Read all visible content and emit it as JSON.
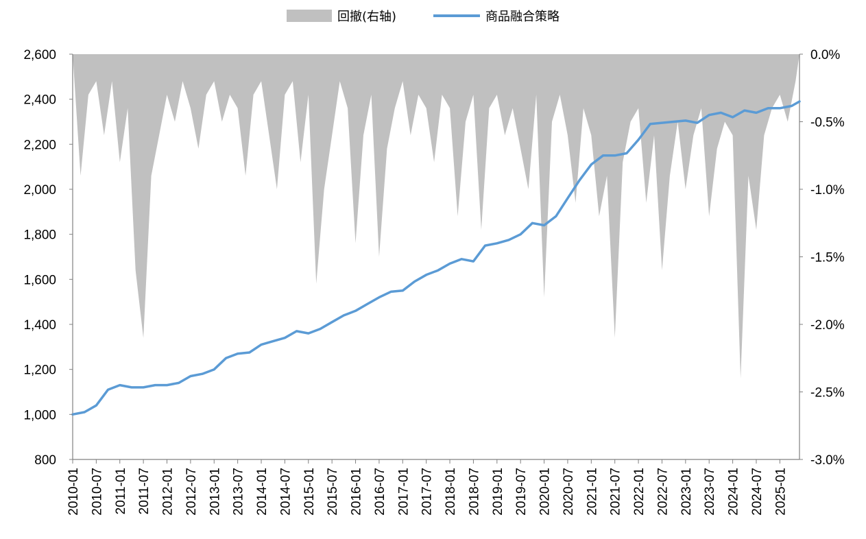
{
  "chart_data": {
    "type": "line",
    "title": "",
    "legend": [
      {
        "name": "回撤(右轴)",
        "kind": "area",
        "color": "#c0c0c0"
      },
      {
        "name": "商品融合策略",
        "kind": "line",
        "color": "#5b9bd5"
      }
    ],
    "legend_position": "top-center",
    "grid": false,
    "x_axis": {
      "type": "date",
      "range": [
        "2010-01",
        "2025-06"
      ],
      "ticks": [
        "2010-01",
        "2010-07",
        "2011-01",
        "2011-07",
        "2012-01",
        "2012-07",
        "2013-01",
        "2013-07",
        "2014-01",
        "2014-07",
        "2015-01",
        "2015-07",
        "2016-01",
        "2016-07",
        "2017-01",
        "2017-07",
        "2018-01",
        "2018-07",
        "2019-01",
        "2019-07",
        "2020-01",
        "2020-07",
        "2021-01",
        "2021-07",
        "2022-01",
        "2022-07",
        "2023-01",
        "2023-07",
        "2024-01",
        "2024-07",
        "2025-01"
      ]
    },
    "y_left": {
      "min": 800,
      "max": 2600,
      "ticks": [
        800,
        1000,
        1200,
        1400,
        1600,
        1800,
        2000,
        2200,
        2400,
        2600
      ],
      "tick_labels": [
        "800",
        "1,000",
        "1,200",
        "1,400",
        "1,600",
        "1,800",
        "2,000",
        "2,200",
        "2,400",
        "2,600"
      ]
    },
    "y_right": {
      "min": -3.0,
      "max": 0.0,
      "ticks": [
        0.0,
        -0.5,
        -1.0,
        -1.5,
        -2.0,
        -2.5,
        -3.0
      ],
      "tick_labels": [
        "0.0%",
        "-0.5%",
        "-1.0%",
        "-1.5%",
        "-2.0%",
        "-2.5%",
        "-3.0%"
      ]
    },
    "series": [
      {
        "name": "商品融合策略",
        "axis": "left",
        "x": [
          "2010-01",
          "2010-04",
          "2010-07",
          "2010-10",
          "2011-01",
          "2011-04",
          "2011-07",
          "2011-10",
          "2012-01",
          "2012-04",
          "2012-07",
          "2012-10",
          "2013-01",
          "2013-04",
          "2013-07",
          "2013-10",
          "2014-01",
          "2014-04",
          "2014-07",
          "2014-10",
          "2015-01",
          "2015-04",
          "2015-07",
          "2015-10",
          "2016-01",
          "2016-04",
          "2016-07",
          "2016-10",
          "2017-01",
          "2017-04",
          "2017-07",
          "2017-10",
          "2018-01",
          "2018-04",
          "2018-07",
          "2018-10",
          "2019-01",
          "2019-04",
          "2019-07",
          "2019-10",
          "2020-01",
          "2020-04",
          "2020-07",
          "2020-10",
          "2021-01",
          "2021-04",
          "2021-07",
          "2021-10",
          "2022-01",
          "2022-04",
          "2022-07",
          "2022-10",
          "2023-01",
          "2023-04",
          "2023-07",
          "2023-10",
          "2024-01",
          "2024-04",
          "2024-07",
          "2024-10",
          "2025-01",
          "2025-04",
          "2025-06"
        ],
        "values": [
          1000,
          1010,
          1040,
          1110,
          1130,
          1120,
          1120,
          1130,
          1130,
          1140,
          1170,
          1180,
          1200,
          1250,
          1270,
          1275,
          1310,
          1325,
          1340,
          1370,
          1360,
          1380,
          1410,
          1440,
          1460,
          1490,
          1520,
          1545,
          1550,
          1590,
          1620,
          1640,
          1670,
          1690,
          1680,
          1750,
          1760,
          1775,
          1800,
          1850,
          1840,
          1880,
          1960,
          2040,
          2110,
          2150,
          2150,
          2160,
          2220,
          2290,
          2295,
          2300,
          2305,
          2295,
          2330,
          2340,
          2320,
          2350,
          2340,
          2360,
          2360,
          2370,
          2390
        ]
      },
      {
        "name": "回撤(右轴)",
        "axis": "right",
        "x": [
          "2010-01",
          "2010-03",
          "2010-05",
          "2010-07",
          "2010-09",
          "2010-11",
          "2011-01",
          "2011-03",
          "2011-05",
          "2011-07",
          "2011-09",
          "2011-11",
          "2012-01",
          "2012-03",
          "2012-05",
          "2012-07",
          "2012-09",
          "2012-11",
          "2013-01",
          "2013-03",
          "2013-05",
          "2013-07",
          "2013-09",
          "2013-11",
          "2014-01",
          "2014-03",
          "2014-05",
          "2014-07",
          "2014-09",
          "2014-11",
          "2015-01",
          "2015-03",
          "2015-05",
          "2015-07",
          "2015-09",
          "2015-11",
          "2016-01",
          "2016-03",
          "2016-05",
          "2016-07",
          "2016-09",
          "2016-11",
          "2017-01",
          "2017-03",
          "2017-05",
          "2017-07",
          "2017-09",
          "2017-11",
          "2018-01",
          "2018-03",
          "2018-05",
          "2018-07",
          "2018-09",
          "2018-11",
          "2019-01",
          "2019-03",
          "2019-05",
          "2019-07",
          "2019-09",
          "2019-11",
          "2020-01",
          "2020-03",
          "2020-05",
          "2020-07",
          "2020-09",
          "2020-11",
          "2021-01",
          "2021-03",
          "2021-05",
          "2021-07",
          "2021-09",
          "2021-11",
          "2022-01",
          "2022-03",
          "2022-05",
          "2022-07",
          "2022-09",
          "2022-11",
          "2023-01",
          "2023-03",
          "2023-05",
          "2023-07",
          "2023-09",
          "2023-11",
          "2024-01",
          "2024-03",
          "2024-05",
          "2024-07",
          "2024-09",
          "2024-11",
          "2025-01",
          "2025-03",
          "2025-05",
          "2025-06"
        ],
        "values": [
          0,
          -0.9,
          -0.3,
          -0.2,
          -0.6,
          -0.2,
          -0.8,
          -0.4,
          -1.6,
          -2.1,
          -0.9,
          -0.6,
          -0.3,
          -0.5,
          -0.2,
          -0.4,
          -0.7,
          -0.3,
          -0.2,
          -0.5,
          -0.3,
          -0.4,
          -0.9,
          -0.3,
          -0.2,
          -0.6,
          -1.0,
          -0.3,
          -0.2,
          -0.8,
          -0.3,
          -1.7,
          -1.0,
          -0.6,
          -0.2,
          -0.4,
          -1.4,
          -0.6,
          -0.3,
          -1.5,
          -0.7,
          -0.4,
          -0.2,
          -0.6,
          -0.3,
          -0.4,
          -0.8,
          -0.3,
          -0.4,
          -1.2,
          -0.5,
          -0.3,
          -1.3,
          -0.4,
          -0.3,
          -0.6,
          -0.4,
          -0.7,
          -1.0,
          -0.3,
          -1.8,
          -0.5,
          -0.3,
          -0.6,
          -1.1,
          -0.4,
          -0.6,
          -1.2,
          -0.9,
          -2.1,
          -0.8,
          -0.5,
          -0.4,
          -1.1,
          -0.6,
          -1.6,
          -0.9,
          -0.5,
          -1.0,
          -0.6,
          -0.4,
          -1.2,
          -0.7,
          -0.5,
          -0.6,
          -2.4,
          -0.9,
          -1.3,
          -0.6,
          -0.4,
          -0.3,
          -0.5,
          -0.2,
          0
        ]
      }
    ]
  }
}
